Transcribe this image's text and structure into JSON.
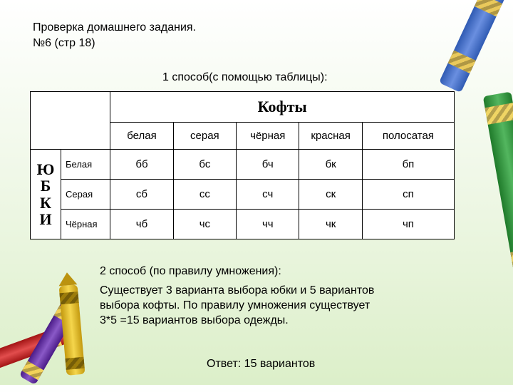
{
  "heading_line1": "Проверка домашнего задания.",
  "heading_line2": "№6 (стр 18)",
  "method1_label": "1 способ(с помощью таблицы):",
  "table": {
    "top_header": "Кофты",
    "side_header": "ЮБКИ",
    "col_labels": [
      "белая",
      "серая",
      "чёрная",
      "красная",
      "полосатая"
    ],
    "row_labels": [
      "Белая",
      "Серая",
      "Чёрная"
    ],
    "cells": [
      [
        "бб",
        "бс",
        "бч",
        "бк",
        "бп"
      ],
      [
        "сб",
        "сс",
        "сч",
        "ск",
        "сп"
      ],
      [
        "чб",
        "чс",
        "чч",
        "чк",
        "чп"
      ]
    ]
  },
  "method2_label": "2 способ (по правилу умножения):",
  "method2_body": "Существует 3 варианта выбора юбки и 5 вариантов выбора кофты. По правилу умножения существует 3*5 =15 вариантов выбора одежды.",
  "answer": "Ответ: 15 вариантов",
  "crayon_colors": {
    "blue": "#305bb3",
    "green": "#1f7a2a",
    "yellow": "#f5d64c",
    "red": "#e24d4d",
    "purple": "#8a59c7",
    "band": "#f0d564"
  }
}
